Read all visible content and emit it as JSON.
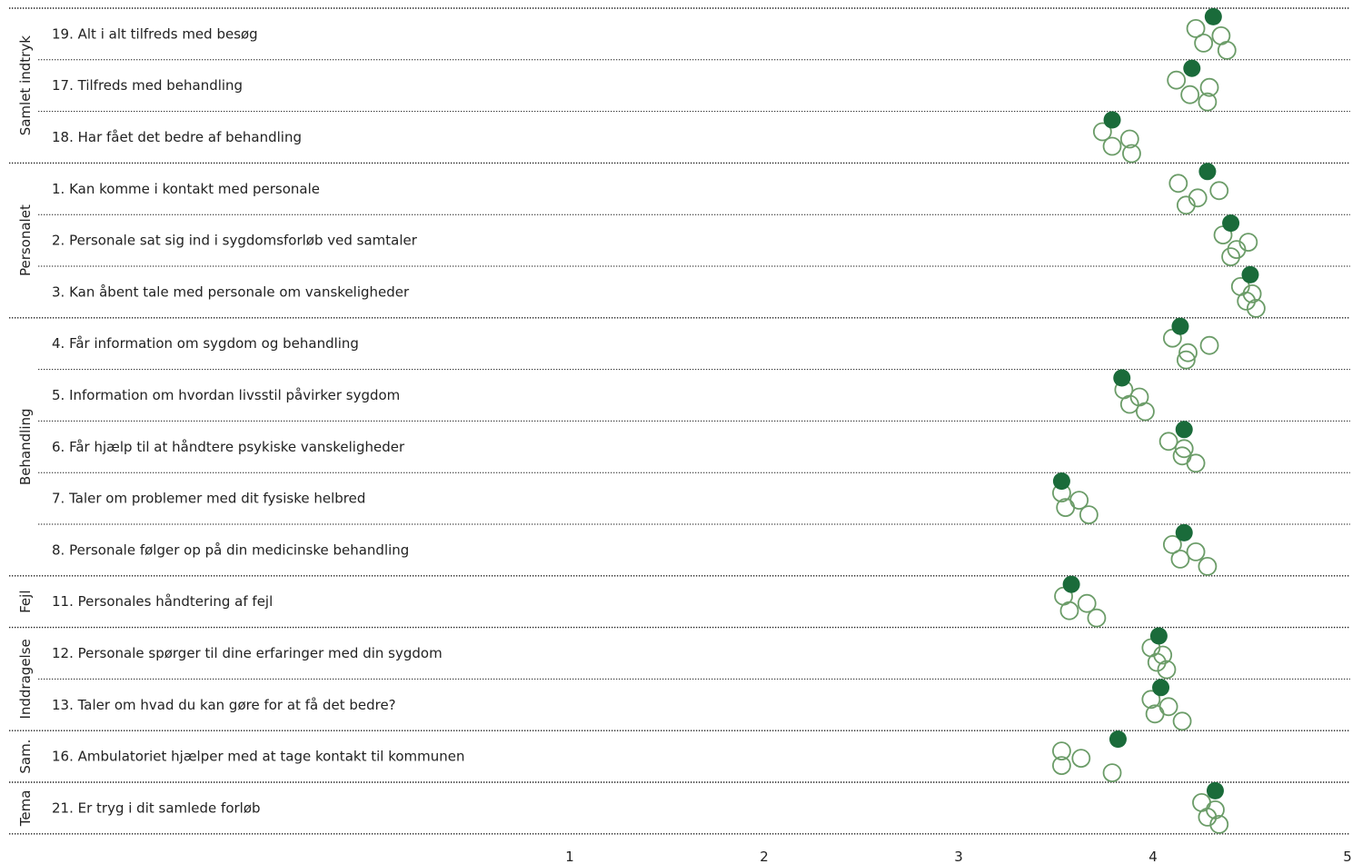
{
  "chart_data": {
    "type": "scatter",
    "xlim": [
      0.4,
      5
    ],
    "xticks": [
      "1",
      "2",
      "3",
      "4",
      "5"
    ],
    "colors": {
      "filled": "#1a6b3a",
      "open": "#6b9c68"
    },
    "groups": [
      {
        "label": "Samlet indtryk",
        "rows": [
          {
            "question": "19. Alt i alt tilfreds med besøg",
            "value": 4.31,
            "comparisons": [
              4.22,
              4.26,
              4.35,
              4.38
            ]
          },
          {
            "question": "17. Tilfreds med behandling",
            "value": 4.2,
            "comparisons": [
              4.12,
              4.19,
              4.29,
              4.28
            ]
          },
          {
            "question": "18. Har fået det bedre af behandling",
            "value": 3.79,
            "comparisons": [
              3.74,
              3.79,
              3.88,
              3.89
            ]
          }
        ]
      },
      {
        "label": "Personalet",
        "rows": [
          {
            "question": "1. Kan komme i kontakt med personale",
            "value": 4.28,
            "comparisons": [
              4.13,
              4.23,
              4.34,
              4.17
            ]
          },
          {
            "question": "2. Personale sat sig ind i sygdomsforløb ved samtaler",
            "value": 4.4,
            "comparisons": [
              4.36,
              4.43,
              4.49,
              4.4
            ]
          },
          {
            "question": "3. Kan åbent tale med personale om vanskeligheder",
            "value": 4.5,
            "comparisons": [
              4.45,
              4.48,
              4.51,
              4.53
            ]
          }
        ]
      },
      {
        "label": "Behandling",
        "rows": [
          {
            "question": "4. Får information om sygdom og behandling",
            "value": 4.14,
            "comparisons": [
              4.1,
              4.18,
              4.29,
              4.17
            ]
          },
          {
            "question": "5. Information om hvordan livsstil påvirker sygdom",
            "value": 3.84,
            "comparisons": [
              3.85,
              3.88,
              3.93,
              3.96
            ]
          },
          {
            "question": "6. Får hjælp til at håndtere psykiske vanskeligheder",
            "value": 4.16,
            "comparisons": [
              4.08,
              4.15,
              4.16,
              4.22
            ]
          },
          {
            "question": "7. Taler om problemer med dit fysiske helbred",
            "value": 3.53,
            "comparisons": [
              3.53,
              3.55,
              3.62,
              3.67
            ]
          },
          {
            "question": "8. Personale følger op på din medicinske behandling",
            "value": 4.16,
            "comparisons": [
              4.1,
              4.14,
              4.22,
              4.28
            ]
          }
        ]
      },
      {
        "label": "Fejl",
        "rows": [
          {
            "question": "11. Personales håndtering af fejl",
            "value": 3.58,
            "comparisons": [
              3.54,
              3.57,
              3.66,
              3.71
            ]
          }
        ]
      },
      {
        "label": "Inddragelse",
        "rows": [
          {
            "question": "12. Personale spørger til dine erfaringer med din sygdom",
            "value": 4.03,
            "comparisons": [
              3.99,
              4.02,
              4.05,
              4.07
            ]
          },
          {
            "question": "13. Taler om hvad du kan gøre for at få det bedre?",
            "value": 4.04,
            "comparisons": [
              3.99,
              4.01,
              4.08,
              4.15
            ]
          }
        ]
      },
      {
        "label": "Sam.",
        "rows": [
          {
            "question": "16. Ambulatoriet hjælper med at tage kontakt til kommunen",
            "value": 3.82,
            "comparisons": [
              3.53,
              3.53,
              3.63,
              3.79
            ]
          }
        ]
      },
      {
        "label": "Tema",
        "rows": [
          {
            "question": "21. Er tryg i dit samlede forløb",
            "value": 4.32,
            "comparisons": [
              4.25,
              4.28,
              4.32,
              4.34
            ]
          }
        ]
      }
    ]
  }
}
